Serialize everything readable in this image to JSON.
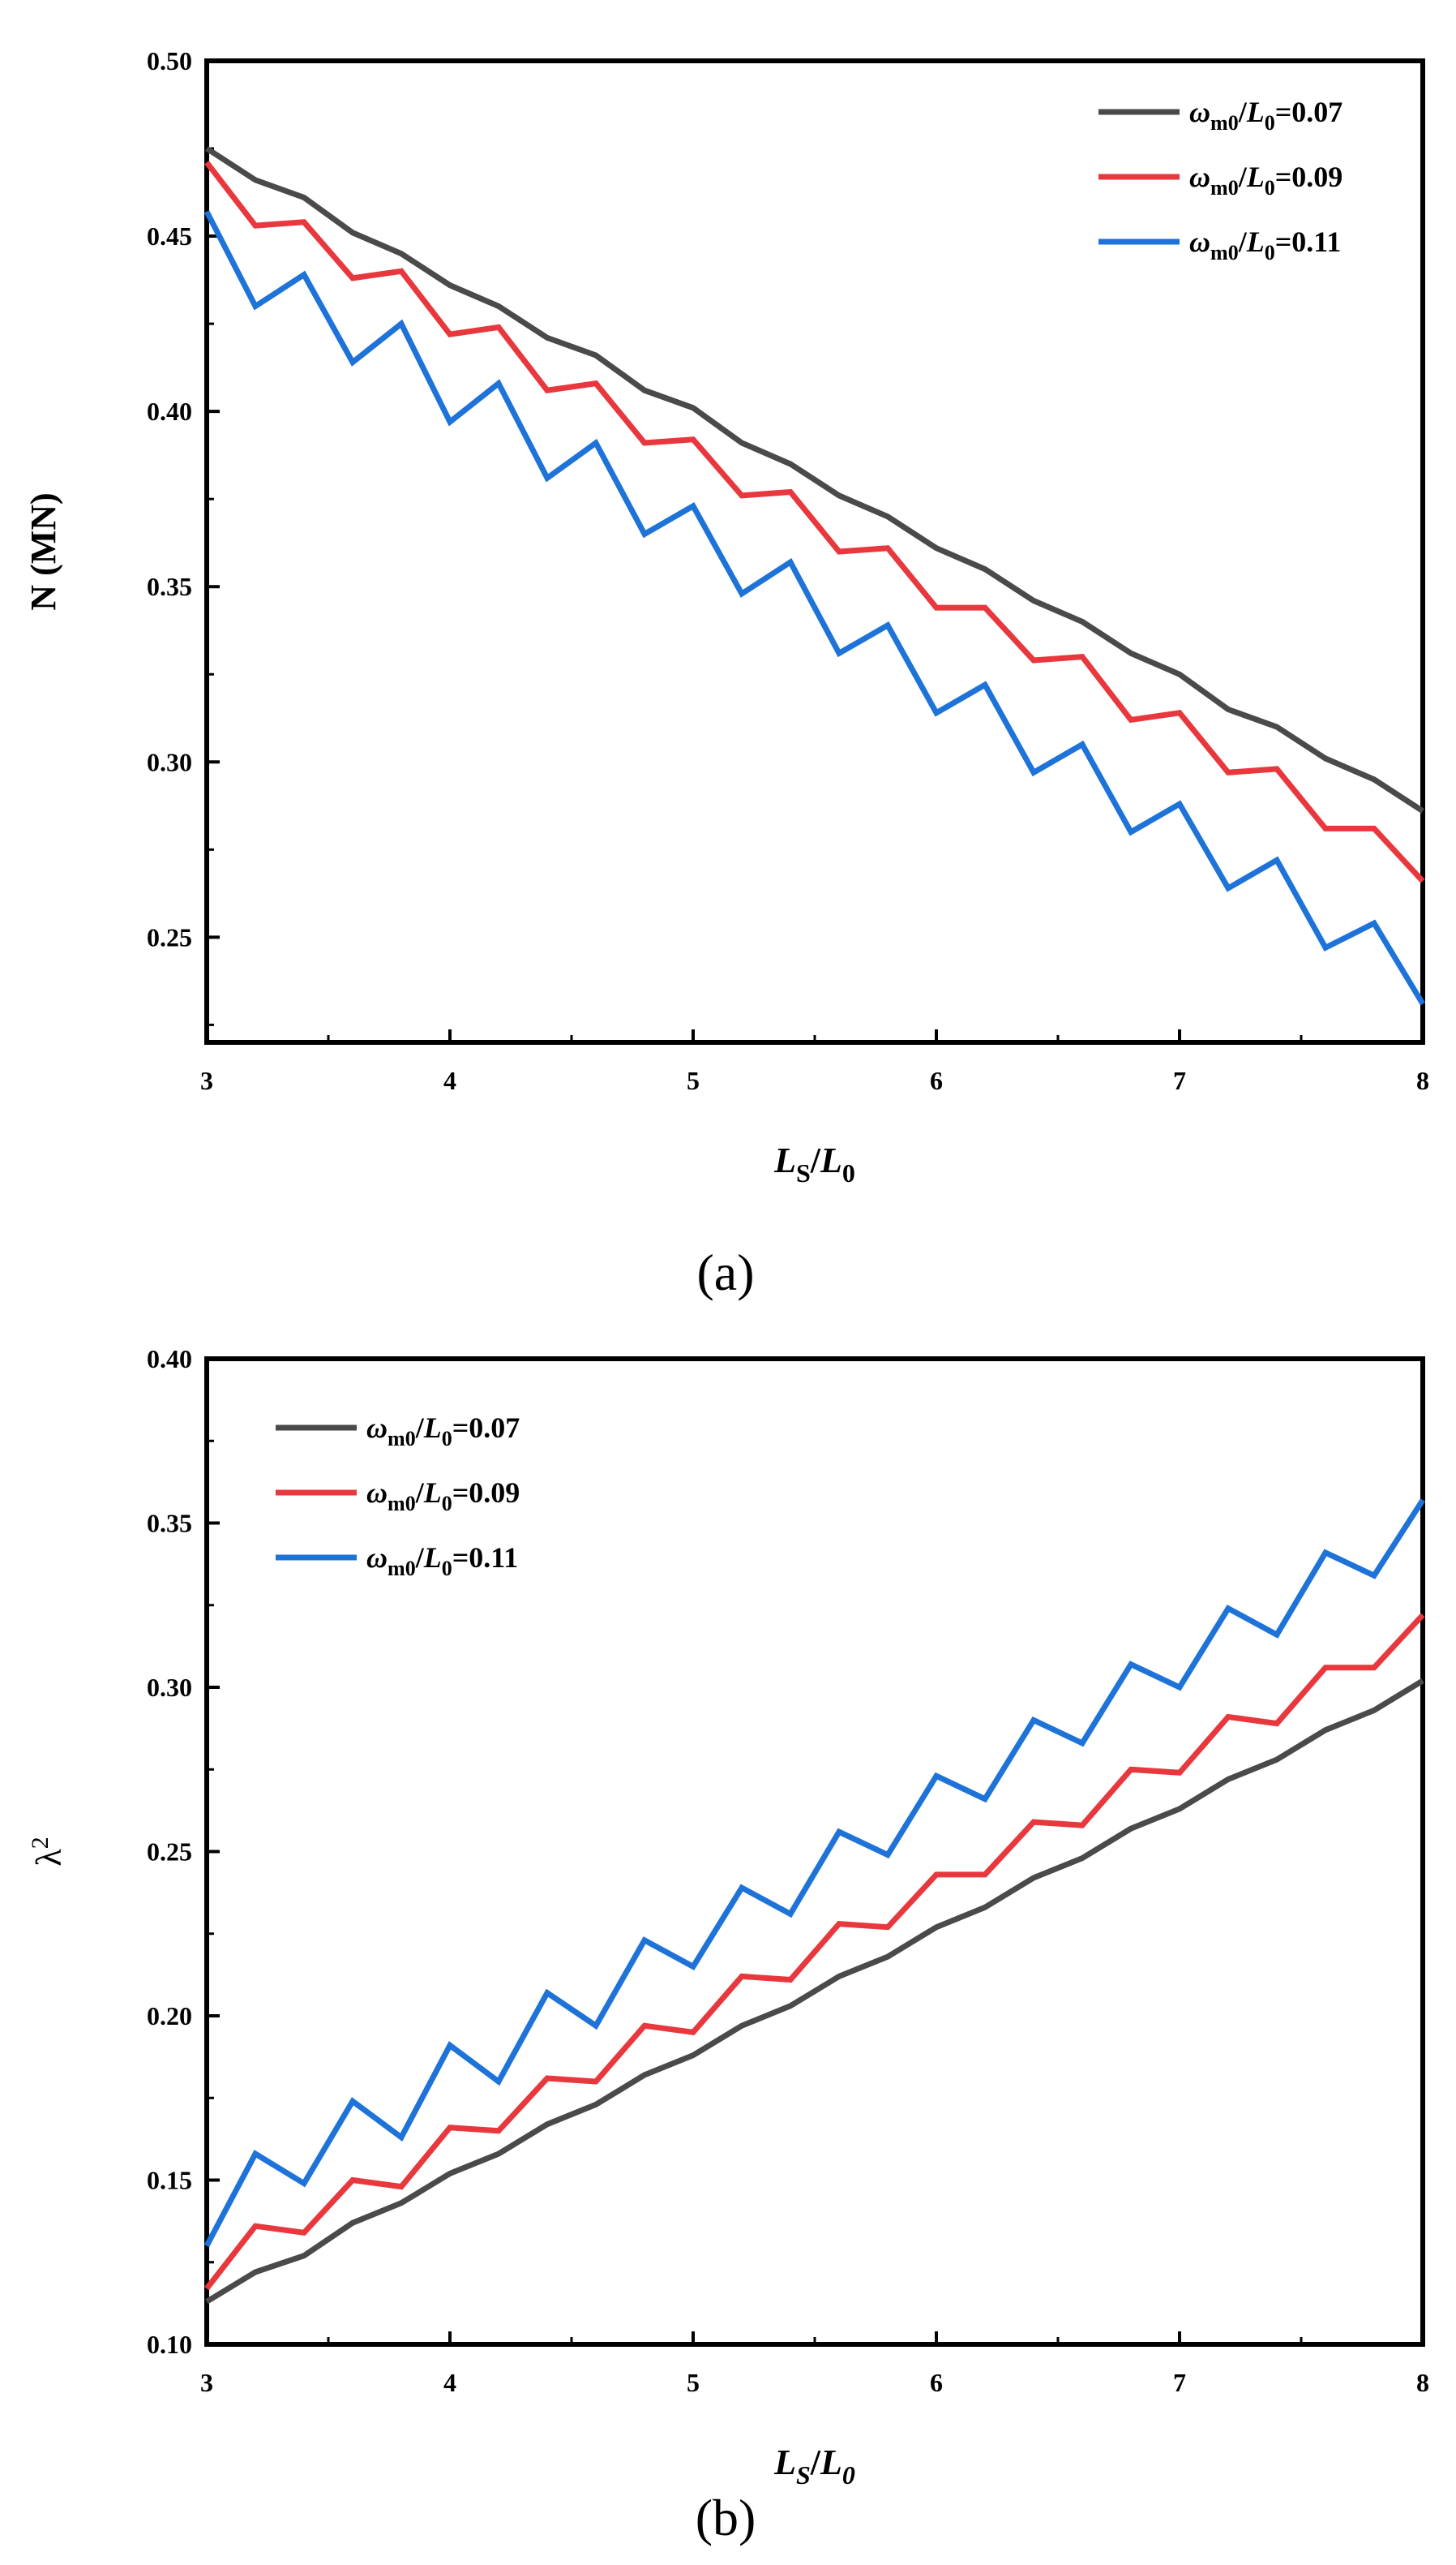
{
  "chart_data": [
    {
      "type": "line",
      "panel_label": "(a)",
      "xlabel": "LS/L0",
      "xlabel_parts": {
        "main": "L",
        "sub": "S",
        "slash": "/",
        "main2": "L",
        "sub2": "0"
      },
      "ylabel": "N (MN)",
      "xlim": [
        3,
        8
      ],
      "ylim": [
        0.22,
        0.5
      ],
      "x_ticks": [
        3,
        4,
        5,
        6,
        7,
        8
      ],
      "y_ticks": [
        0.25,
        0.3,
        0.35,
        0.4,
        0.45,
        0.5
      ],
      "x_tick_labels": [
        "3",
        "4",
        "5",
        "6",
        "7",
        "8"
      ],
      "y_tick_labels": [
        "0.25",
        "0.30",
        "0.35",
        "0.40",
        "0.45",
        "0.50"
      ],
      "legend_position": "top-right",
      "x": [
        3.0,
        3.2,
        3.4,
        3.6,
        3.8,
        4.0,
        4.2,
        4.4,
        4.6,
        4.8,
        5.0,
        5.2,
        5.4,
        5.6,
        5.8,
        6.0,
        6.2,
        6.4,
        6.6,
        6.8,
        7.0,
        7.2,
        7.4,
        7.6,
        7.8,
        8.0
      ],
      "series": [
        {
          "name": "ωm0/L0=0.07",
          "legend_main": "ω",
          "legend_sub": "m0",
          "legend_mid": "/L",
          "legend_sub2": "0",
          "legend_val": "=0.07",
          "color": "#4a4a4a",
          "values": [
            0.475,
            0.466,
            0.461,
            0.451,
            0.445,
            0.436,
            0.43,
            0.421,
            0.416,
            0.406,
            0.401,
            0.391,
            0.385,
            0.376,
            0.37,
            0.361,
            0.355,
            0.346,
            0.34,
            0.331,
            0.325,
            0.315,
            0.31,
            0.301,
            0.295,
            0.286
          ]
        },
        {
          "name": "ωm0/L0=0.09",
          "legend_main": "ω",
          "legend_sub": "m0",
          "legend_mid": "/L",
          "legend_sub2": "0",
          "legend_val": "=0.09",
          "color": "#e8383d",
          "values": [
            0.471,
            0.453,
            0.454,
            0.438,
            0.44,
            0.422,
            0.424,
            0.406,
            0.408,
            0.391,
            0.392,
            0.376,
            0.377,
            0.36,
            0.361,
            0.344,
            0.344,
            0.329,
            0.33,
            0.312,
            0.314,
            0.297,
            0.298,
            0.281,
            0.281,
            0.266
          ]
        },
        {
          "name": "ωm0/L0=0.11",
          "legend_main": "ω",
          "legend_sub": "m0",
          "legend_mid": "/L",
          "legend_sub2": "0",
          "legend_val": "=0.11",
          "color": "#1e73d9",
          "values": [
            0.457,
            0.43,
            0.439,
            0.414,
            0.425,
            0.397,
            0.408,
            0.381,
            0.391,
            0.365,
            0.373,
            0.348,
            0.357,
            0.331,
            0.339,
            0.314,
            0.322,
            0.297,
            0.305,
            0.28,
            0.288,
            0.264,
            0.272,
            0.247,
            0.254,
            0.231
          ]
        }
      ]
    },
    {
      "type": "line",
      "panel_label": "(b)",
      "xlabel": "LS/L0",
      "xlabel_parts": {
        "main": "L",
        "sub": "S",
        "slash": "/",
        "main2": "L",
        "sub2": "0"
      },
      "ylabel": "λ2",
      "ylabel_parts": {
        "main": "λ",
        "sup": "2"
      },
      "xlim": [
        3,
        8
      ],
      "ylim": [
        0.1,
        0.4
      ],
      "x_ticks": [
        3,
        4,
        5,
        6,
        7,
        8
      ],
      "y_ticks": [
        0.1,
        0.15,
        0.2,
        0.25,
        0.3,
        0.35,
        0.4
      ],
      "x_tick_labels": [
        "3",
        "4",
        "5",
        "6",
        "7",
        "8"
      ],
      "y_tick_labels": [
        "0.10",
        "0.15",
        "0.20",
        "0.25",
        "0.30",
        "0.35",
        "0.40"
      ],
      "legend_position": "top-left",
      "x": [
        3.0,
        3.2,
        3.4,
        3.6,
        3.8,
        4.0,
        4.2,
        4.4,
        4.6,
        4.8,
        5.0,
        5.2,
        5.4,
        5.6,
        5.8,
        6.0,
        6.2,
        6.4,
        6.6,
        6.8,
        7.0,
        7.2,
        7.4,
        7.6,
        7.8,
        8.0
      ],
      "series": [
        {
          "name": "ωm0/L0=0.07",
          "legend_main": "ω",
          "legend_sub": "m0",
          "legend_mid": "/L",
          "legend_sub2": "0",
          "legend_val": "=0.07",
          "color": "#4a4a4a",
          "values": [
            0.113,
            0.122,
            0.127,
            0.137,
            0.143,
            0.152,
            0.158,
            0.167,
            0.173,
            0.182,
            0.188,
            0.197,
            0.203,
            0.212,
            0.218,
            0.227,
            0.233,
            0.242,
            0.248,
            0.257,
            0.263,
            0.272,
            0.278,
            0.287,
            0.293,
            0.302
          ]
        },
        {
          "name": "ωm0/L0=0.09",
          "legend_main": "ω",
          "legend_sub": "m0",
          "legend_mid": "/L",
          "legend_sub2": "0",
          "legend_val": "=0.09",
          "color": "#e8383d",
          "values": [
            0.117,
            0.136,
            0.134,
            0.15,
            0.148,
            0.166,
            0.165,
            0.181,
            0.18,
            0.197,
            0.195,
            0.212,
            0.211,
            0.228,
            0.227,
            0.243,
            0.243,
            0.259,
            0.258,
            0.275,
            0.274,
            0.291,
            0.289,
            0.306,
            0.306,
            0.322
          ]
        },
        {
          "name": "ωm0/L0=0.11",
          "legend_main": "ω",
          "legend_sub": "m0",
          "legend_mid": "/L",
          "legend_sub2": "0",
          "legend_val": "=0.11",
          "color": "#1e73d9",
          "values": [
            0.13,
            0.158,
            0.149,
            0.174,
            0.163,
            0.191,
            0.18,
            0.207,
            0.197,
            0.223,
            0.215,
            0.239,
            0.231,
            0.256,
            0.249,
            0.273,
            0.266,
            0.29,
            0.283,
            0.307,
            0.3,
            0.324,
            0.316,
            0.341,
            0.334,
            0.357
          ]
        }
      ]
    }
  ]
}
